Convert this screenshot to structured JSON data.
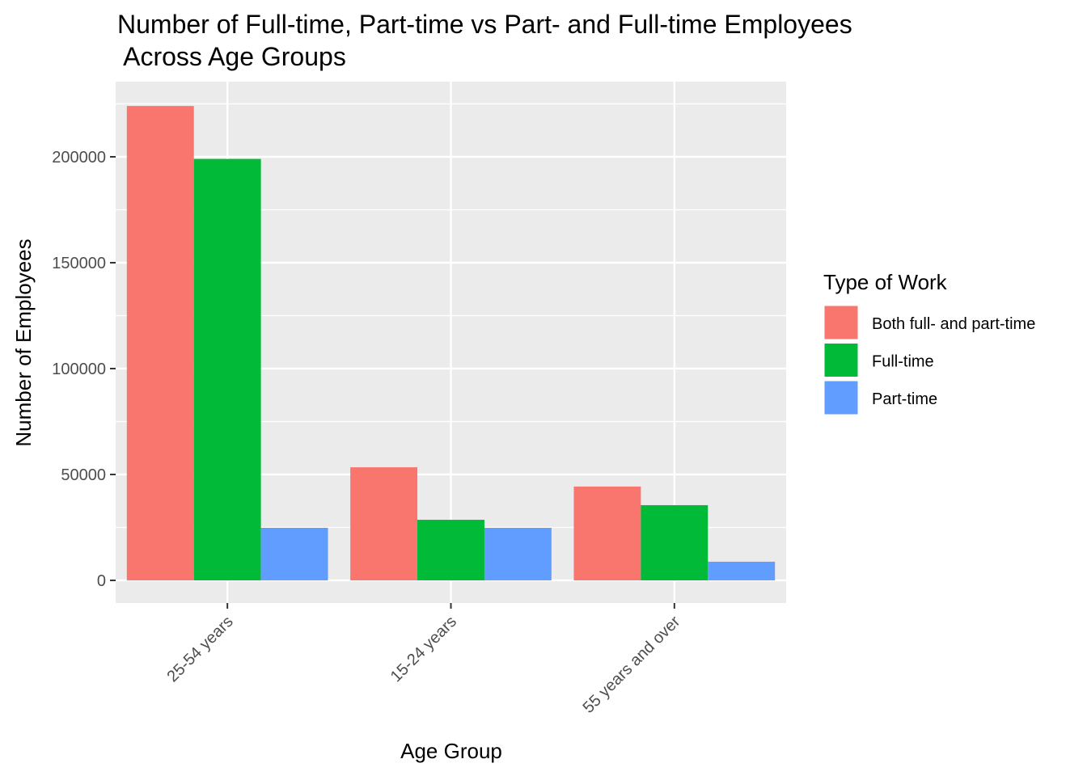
{
  "chart_data": {
    "type": "bar",
    "title": "Number of Full-time, Part-time vs Part- and Full-time Employees\n Across Age Groups",
    "x_label": "Age Group",
    "y_label": "Number of Employees",
    "legend_title": "Type of Work",
    "categories": [
      "25-54 years",
      "15-24 years",
      "55 years and over"
    ],
    "series": [
      {
        "name": "Both full- and part-time",
        "color": "#f8766d",
        "values": [
          224000,
          53400,
          44300
        ]
      },
      {
        "name": "Full-time",
        "color": "#00ba38",
        "values": [
          199000,
          28600,
          35500
        ]
      },
      {
        "name": "Part-time",
        "color": "#619cff",
        "values": [
          24800,
          24800,
          8800
        ]
      }
    ],
    "ylim": [
      -10700,
      235500
    ],
    "yticks": [
      0,
      50000,
      100000,
      150000,
      200000
    ],
    "grid": true,
    "legend": "right"
  }
}
